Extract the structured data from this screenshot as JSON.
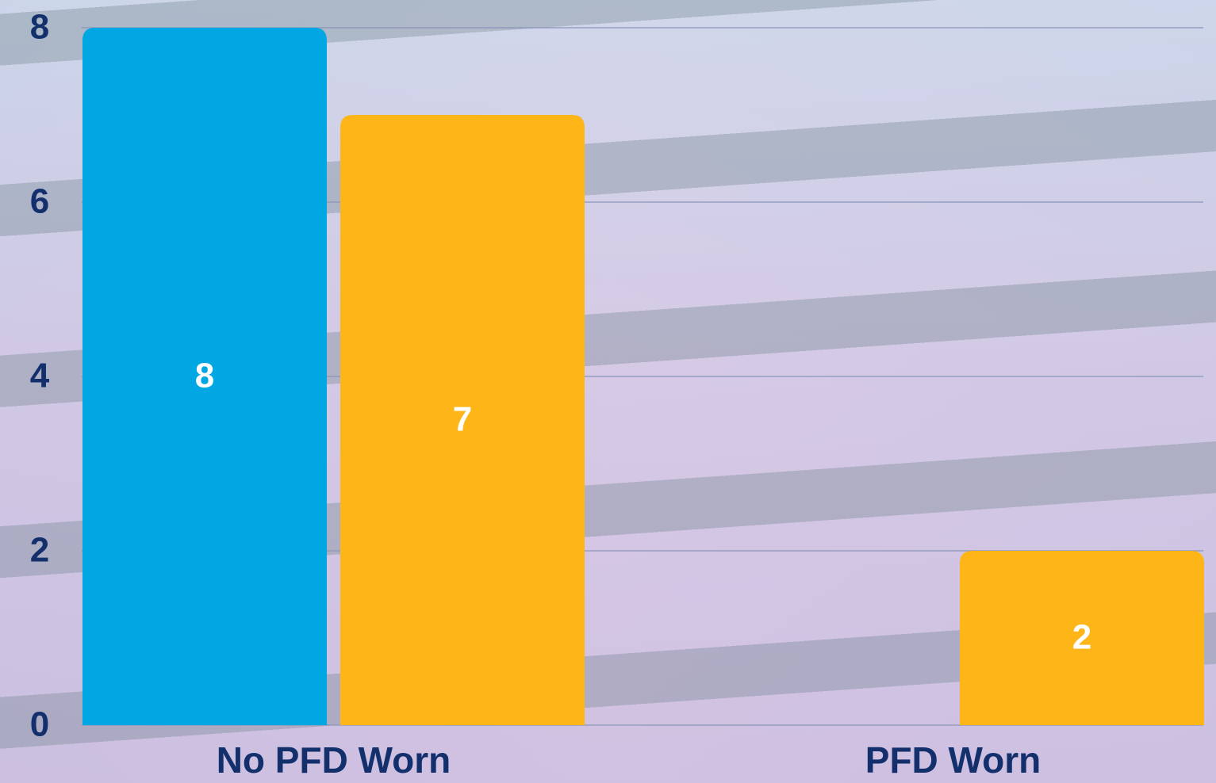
{
  "chart_data": {
    "type": "bar",
    "categories": [
      "No PFD Worn",
      "PFD Worn"
    ],
    "series": [
      {
        "color": "#00a7e3",
        "values": [
          8,
          null
        ]
      },
      {
        "color": "#fdb518",
        "values": [
          7,
          2
        ]
      }
    ],
    "ylim": [
      0,
      8
    ],
    "yticks": [
      0,
      2,
      4,
      6,
      8
    ],
    "grid": true
  }
}
